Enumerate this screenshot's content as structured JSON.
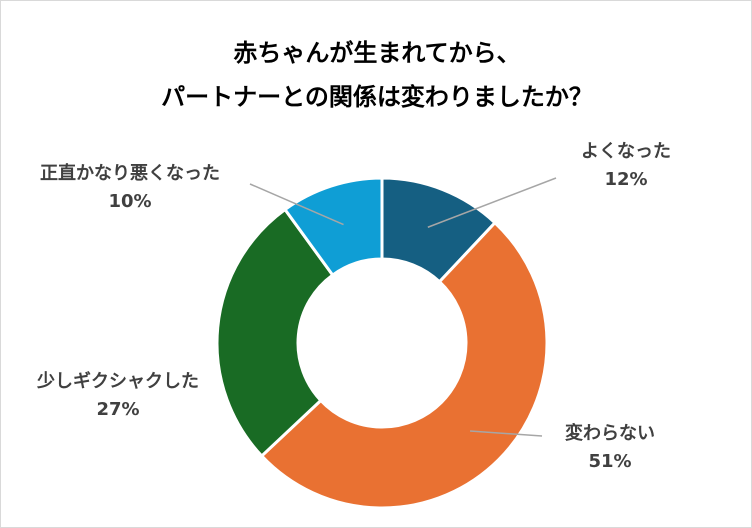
{
  "chart_data": {
    "type": "pie",
    "title_lines": [
      "赤ちゃんが生まれてから、",
      "パートナーとの関係は変わりましたか？"
    ],
    "donut": true,
    "categories": [
      "よくなった",
      "変わらない",
      "少しギクシャクした",
      "正直かなり悪くなった"
    ],
    "values": [
      12,
      51,
      27,
      10
    ],
    "value_labels": [
      "12%",
      "51%",
      "27%",
      "10%"
    ],
    "colors": [
      "#155f82",
      "#e97132",
      "#196b24",
      "#0f9ed5"
    ]
  }
}
